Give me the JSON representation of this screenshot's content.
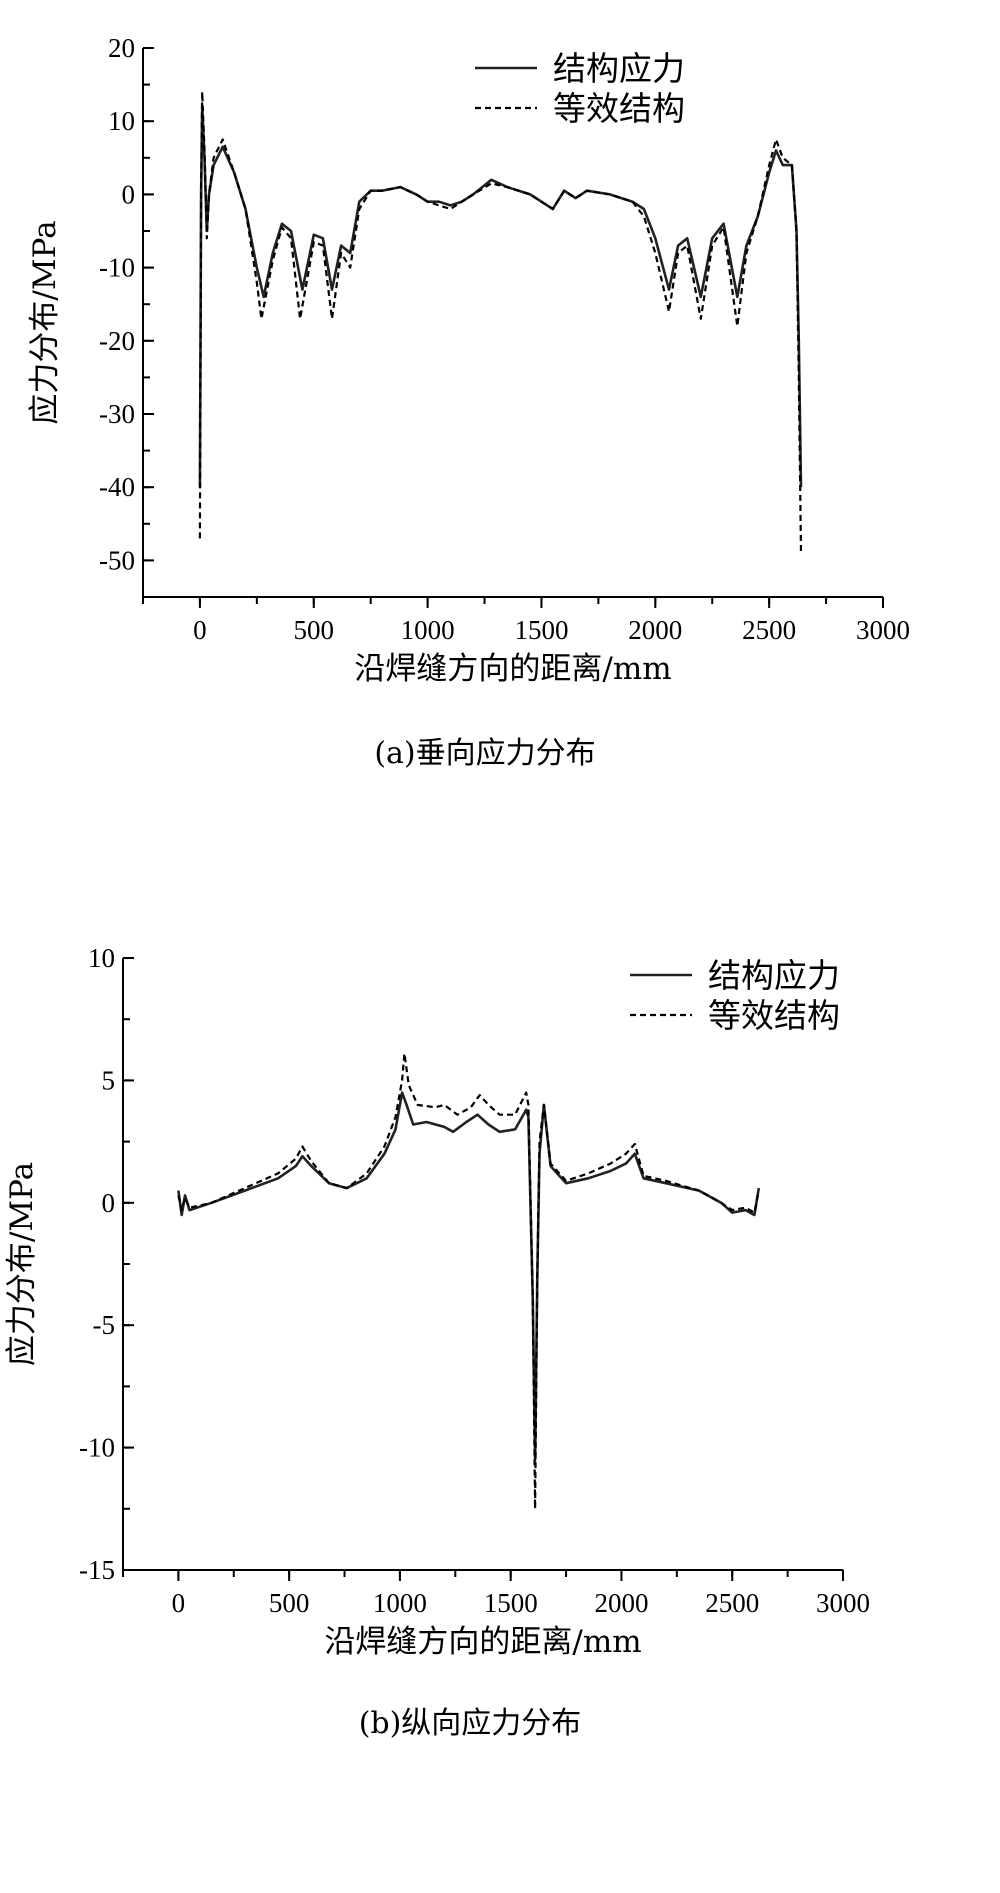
{
  "chart_data": [
    {
      "type": "line",
      "caption": "(a)垂向应力分布",
      "xlabel": "沿焊缝方向的距离/mm",
      "ylabel": "应力分布/MPa",
      "xlim": [
        -250,
        3000
      ],
      "ylim": [
        -55,
        20
      ],
      "xticks": [
        0,
        500,
        1000,
        1500,
        2000,
        2500,
        3000
      ],
      "yticks": [
        20,
        10,
        0,
        -10,
        -20,
        -30,
        -40,
        -50
      ],
      "grid": false,
      "legend": "top-right",
      "series": [
        {
          "name": "结构应力",
          "style": "solid",
          "points": [
            [
              0,
              -40
            ],
            [
              5,
              0
            ],
            [
              10,
              12
            ],
            [
              20,
              5
            ],
            [
              30,
              -5
            ],
            [
              40,
              0
            ],
            [
              60,
              4
            ],
            [
              100,
              6.5
            ],
            [
              150,
              3
            ],
            [
              200,
              -2
            ],
            [
              250,
              -10
            ],
            [
              280,
              -14
            ],
            [
              320,
              -8
            ],
            [
              360,
              -4
            ],
            [
              400,
              -5
            ],
            [
              450,
              -13
            ],
            [
              500,
              -5.5
            ],
            [
              540,
              -6
            ],
            [
              580,
              -13
            ],
            [
              620,
              -7
            ],
            [
              660,
              -8
            ],
            [
              700,
              -1
            ],
            [
              750,
              0.5
            ],
            [
              800,
              0.5
            ],
            [
              880,
              1
            ],
            [
              950,
              0
            ],
            [
              1000,
              -1
            ],
            [
              1050,
              -1
            ],
            [
              1100,
              -1.5
            ],
            [
              1150,
              -1
            ],
            [
              1200,
              0
            ],
            [
              1280,
              2
            ],
            [
              1350,
              1
            ],
            [
              1400,
              0.5
            ],
            [
              1450,
              0
            ],
            [
              1500,
              -1
            ],
            [
              1550,
              -2
            ],
            [
              1600,
              0.5
            ],
            [
              1650,
              -0.5
            ],
            [
              1700,
              0.5
            ],
            [
              1800,
              0
            ],
            [
              1900,
              -1
            ],
            [
              1950,
              -2
            ],
            [
              2000,
              -6
            ],
            [
              2060,
              -13
            ],
            [
              2100,
              -7
            ],
            [
              2140,
              -6
            ],
            [
              2200,
              -14
            ],
            [
              2250,
              -6
            ],
            [
              2300,
              -4
            ],
            [
              2360,
              -14
            ],
            [
              2400,
              -7
            ],
            [
              2450,
              -3
            ],
            [
              2500,
              3
            ],
            [
              2530,
              6
            ],
            [
              2560,
              4
            ],
            [
              2600,
              4
            ],
            [
              2620,
              -5
            ],
            [
              2630,
              -20
            ],
            [
              2640,
              -40
            ]
          ]
        },
        {
          "name": "等效结构",
          "style": "dashed",
          "points": [
            [
              0,
              -47
            ],
            [
              5,
              0
            ],
            [
              10,
              14
            ],
            [
              20,
              6
            ],
            [
              30,
              -6
            ],
            [
              40,
              0
            ],
            [
              60,
              5
            ],
            [
              100,
              7.5
            ],
            [
              150,
              3
            ],
            [
              200,
              -2
            ],
            [
              250,
              -12
            ],
            [
              270,
              -17
            ],
            [
              320,
              -9
            ],
            [
              360,
              -4.5
            ],
            [
              400,
              -6
            ],
            [
              440,
              -17
            ],
            [
              500,
              -6.5
            ],
            [
              540,
              -7
            ],
            [
              580,
              -17
            ],
            [
              620,
              -8
            ],
            [
              660,
              -10
            ],
            [
              700,
              -2
            ],
            [
              750,
              0.5
            ],
            [
              800,
              0.5
            ],
            [
              880,
              1
            ],
            [
              950,
              0
            ],
            [
              1000,
              -1
            ],
            [
              1050,
              -1.5
            ],
            [
              1100,
              -2
            ],
            [
              1150,
              -1
            ],
            [
              1200,
              0
            ],
            [
              1280,
              1.5
            ],
            [
              1350,
              1
            ],
            [
              1400,
              0.5
            ],
            [
              1450,
              0
            ],
            [
              1500,
              -1
            ],
            [
              1550,
              -2
            ],
            [
              1600,
              0.5
            ],
            [
              1650,
              -0.5
            ],
            [
              1700,
              0.5
            ],
            [
              1800,
              0
            ],
            [
              1900,
              -1
            ],
            [
              1950,
              -3
            ],
            [
              2000,
              -8
            ],
            [
              2060,
              -16
            ],
            [
              2100,
              -8
            ],
            [
              2140,
              -7
            ],
            [
              2200,
              -17
            ],
            [
              2250,
              -7
            ],
            [
              2300,
              -4.5
            ],
            [
              2360,
              -18
            ],
            [
              2400,
              -8
            ],
            [
              2450,
              -3
            ],
            [
              2500,
              4
            ],
            [
              2530,
              7.5
            ],
            [
              2560,
              5
            ],
            [
              2600,
              4
            ],
            [
              2620,
              -5
            ],
            [
              2630,
              -25
            ],
            [
              2640,
              -49
            ]
          ]
        }
      ]
    },
    {
      "type": "line",
      "caption": "(b)纵向应力分布",
      "xlabel": "沿焊缝方向的距离/mm",
      "ylabel": "应力分布/MPa",
      "xlim": [
        -250,
        3000
      ],
      "ylim": [
        -15,
        10
      ],
      "xticks": [
        0,
        500,
        1000,
        1500,
        2000,
        2500,
        3000
      ],
      "yticks": [
        10,
        5,
        0,
        -5,
        -10,
        -15
      ],
      "grid": false,
      "legend": "top-right",
      "series": [
        {
          "name": "结构应力",
          "style": "solid",
          "points": [
            [
              0,
              0.5
            ],
            [
              15,
              -0.5
            ],
            [
              30,
              0.3
            ],
            [
              50,
              -0.3
            ],
            [
              150,
              0
            ],
            [
              300,
              0.5
            ],
            [
              450,
              1
            ],
            [
              530,
              1.5
            ],
            [
              560,
              1.9
            ],
            [
              600,
              1.5
            ],
            [
              680,
              0.8
            ],
            [
              760,
              0.6
            ],
            [
              850,
              1
            ],
            [
              930,
              2
            ],
            [
              980,
              3
            ],
            [
              1010,
              4.5
            ],
            [
              1030,
              4
            ],
            [
              1060,
              3.2
            ],
            [
              1120,
              3.3
            ],
            [
              1200,
              3.1
            ],
            [
              1240,
              2.9
            ],
            [
              1300,
              3.3
            ],
            [
              1350,
              3.6
            ],
            [
              1400,
              3.2
            ],
            [
              1450,
              2.9
            ],
            [
              1520,
              3
            ],
            [
              1570,
              3.8
            ],
            [
              1580,
              3.5
            ],
            [
              1600,
              -4
            ],
            [
              1610,
              -10.5
            ],
            [
              1620,
              -3
            ],
            [
              1630,
              2
            ],
            [
              1650,
              4
            ],
            [
              1680,
              1.5
            ],
            [
              1750,
              0.8
            ],
            [
              1850,
              1
            ],
            [
              1950,
              1.3
            ],
            [
              2020,
              1.6
            ],
            [
              2060,
              2
            ],
            [
              2100,
              1
            ],
            [
              2200,
              0.8
            ],
            [
              2350,
              0.5
            ],
            [
              2450,
              0
            ],
            [
              2500,
              -0.4
            ],
            [
              2560,
              -0.3
            ],
            [
              2600,
              -0.5
            ],
            [
              2620,
              0.6
            ]
          ]
        },
        {
          "name": "等效结构",
          "style": "dashed",
          "points": [
            [
              0,
              0.3
            ],
            [
              15,
              -0.3
            ],
            [
              30,
              0.2
            ],
            [
              50,
              -0.2
            ],
            [
              150,
              0
            ],
            [
              300,
              0.6
            ],
            [
              450,
              1.2
            ],
            [
              530,
              1.8
            ],
            [
              560,
              2.3
            ],
            [
              600,
              1.7
            ],
            [
              680,
              0.8
            ],
            [
              760,
              0.6
            ],
            [
              850,
              1.2
            ],
            [
              930,
              2.3
            ],
            [
              980,
              3.5
            ],
            [
              1010,
              5
            ],
            [
              1020,
              6.1
            ],
            [
              1040,
              4.8
            ],
            [
              1080,
              4
            ],
            [
              1160,
              3.9
            ],
            [
              1200,
              4
            ],
            [
              1260,
              3.6
            ],
            [
              1320,
              3.9
            ],
            [
              1360,
              4.4
            ],
            [
              1400,
              4
            ],
            [
              1450,
              3.6
            ],
            [
              1520,
              3.6
            ],
            [
              1570,
              4.5
            ],
            [
              1580,
              4
            ],
            [
              1600,
              -4
            ],
            [
              1610,
              -12.5
            ],
            [
              1620,
              -3
            ],
            [
              1630,
              2.5
            ],
            [
              1650,
              4
            ],
            [
              1680,
              1.6
            ],
            [
              1750,
              0.9
            ],
            [
              1850,
              1.2
            ],
            [
              1950,
              1.6
            ],
            [
              2020,
              2
            ],
            [
              2060,
              2.4
            ],
            [
              2100,
              1.1
            ],
            [
              2200,
              0.9
            ],
            [
              2350,
              0.5
            ],
            [
              2450,
              0
            ],
            [
              2500,
              -0.3
            ],
            [
              2560,
              -0.2
            ],
            [
              2600,
              -0.4
            ],
            [
              2620,
              0.5
            ]
          ]
        }
      ]
    }
  ]
}
